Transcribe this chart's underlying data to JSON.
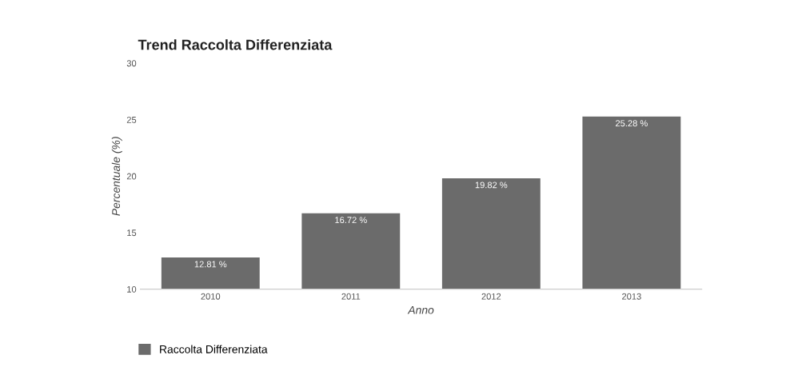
{
  "chart_data": {
    "type": "bar",
    "title": "Trend Raccolta Differenziata",
    "xlabel": "Anno",
    "ylabel": "Percentuale (%)",
    "categories": [
      "2010",
      "2011",
      "2012",
      "2013"
    ],
    "series": [
      {
        "name": "Raccolta Differenziata",
        "color": "#6b6b6b",
        "values": [
          12.81,
          16.72,
          19.82,
          25.28
        ]
      }
    ],
    "value_labels": [
      "12.81 %",
      "16.72 %",
      "19.82 %",
      "25.28 %"
    ],
    "ylim": [
      10,
      30
    ],
    "yticks": [
      10,
      15,
      20,
      25,
      30
    ],
    "legend": "bottom left"
  }
}
